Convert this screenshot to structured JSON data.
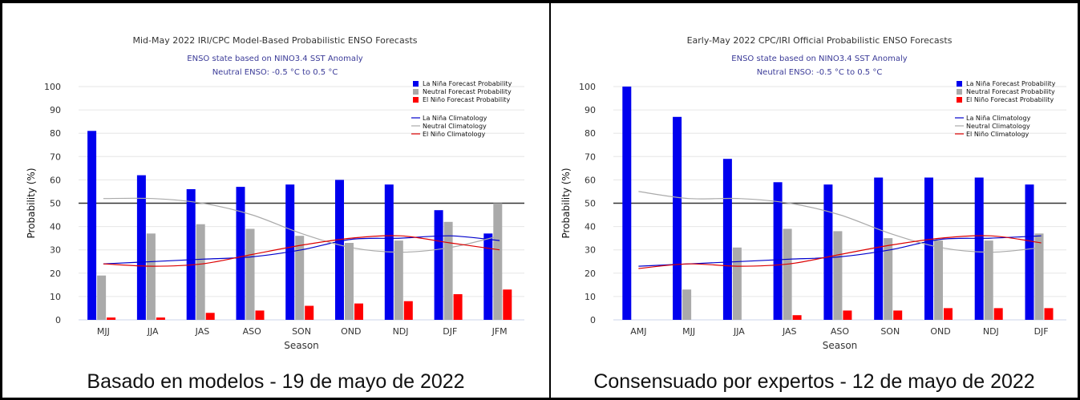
{
  "chart_data": [
    {
      "type": "bar",
      "title": "Mid-May 2022 IRI/CPC Model-Based Probabilistic ENSO Forecasts",
      "subtitle1": "ENSO state based on NINO3.4 SST Anomaly",
      "subtitle2": "Neutral ENSO: -0.5 °C to 0.5 °C",
      "xlabel": "Season",
      "ylabel": "Probability (%)",
      "ylim": [
        0,
        100
      ],
      "yticks": [
        0,
        10,
        20,
        30,
        40,
        50,
        60,
        70,
        80,
        90,
        100
      ],
      "reference_line": 50,
      "categories": [
        "MJJ",
        "JJA",
        "JAS",
        "ASO",
        "SON",
        "OND",
        "NDJ",
        "DJF",
        "JFM"
      ],
      "series": [
        {
          "name": "La Niña Forecast Probability",
          "color": "#0000ee",
          "values": [
            81,
            62,
            56,
            57,
            58,
            60,
            58,
            47,
            37
          ]
        },
        {
          "name": "Neutral Forecast Probability",
          "color": "#aaaaaa",
          "values": [
            19,
            37,
            41,
            39,
            36,
            33,
            34,
            42,
            50
          ]
        },
        {
          "name": "El Niño Forecast Probability",
          "color": "#ff0000",
          "values": [
            1,
            1,
            3,
            4,
            6,
            7,
            8,
            11,
            13
          ]
        }
      ],
      "climatology": [
        {
          "name": "La Niña Climatology",
          "color": "#0000cc",
          "values": [
            24,
            25,
            26,
            27,
            30,
            34.5,
            35,
            36,
            34
          ]
        },
        {
          "name": "Neutral Climatology",
          "color": "#aaaaaa",
          "values": [
            52,
            52,
            50,
            45,
            37,
            31,
            29,
            31,
            36
          ]
        },
        {
          "name": "El Niño Climatology",
          "color": "#dd0000",
          "values": [
            24,
            23,
            24,
            28,
            32,
            35,
            36,
            33,
            30
          ]
        }
      ],
      "legend_position": "top-right"
    },
    {
      "type": "bar",
      "title": "Early-May 2022 CPC/IRI Official Probabilistic ENSO Forecasts",
      "subtitle1": "ENSO state based on NINO3.4 SST Anomaly",
      "subtitle2": "Neutral ENSO: -0.5 °C to 0.5 °C",
      "xlabel": "Season",
      "ylabel": "Probability (%)",
      "ylim": [
        0,
        100
      ],
      "yticks": [
        0,
        10,
        20,
        30,
        40,
        50,
        60,
        70,
        80,
        90,
        100
      ],
      "reference_line": 50,
      "categories": [
        "AMJ",
        "MJJ",
        "JJA",
        "JAS",
        "ASO",
        "SON",
        "OND",
        "NDJ",
        "DJF"
      ],
      "series": [
        {
          "name": "La Niña Forecast Probability",
          "color": "#0000ee",
          "values": [
            100,
            87,
            69,
            59,
            58,
            61,
            61,
            61,
            58
          ]
        },
        {
          "name": "Neutral Forecast Probability",
          "color": "#aaaaaa",
          "values": [
            0,
            13,
            31,
            39,
            38,
            35,
            34,
            34,
            37
          ]
        },
        {
          "name": "El Niño Forecast Probability",
          "color": "#ff0000",
          "values": [
            0,
            0,
            0,
            2,
            4,
            4,
            5,
            5,
            5
          ]
        }
      ],
      "climatology": [
        {
          "name": "La Niña Climatology",
          "color": "#0000cc",
          "values": [
            23,
            24,
            25,
            26,
            27,
            30,
            34.5,
            35,
            36
          ]
        },
        {
          "name": "Neutral Climatology",
          "color": "#aaaaaa",
          "values": [
            55,
            52,
            52,
            50,
            45,
            37,
            31,
            29,
            31
          ]
        },
        {
          "name": "El Niño Climatology",
          "color": "#dd0000",
          "values": [
            22,
            24,
            23,
            24,
            28,
            32,
            35,
            36,
            33
          ]
        }
      ],
      "legend_position": "top-right"
    }
  ],
  "captions": {
    "left": "Basado en modelos - 19 de mayo de 2022",
    "right": "Consensuado por expertos - 12 de mayo de 2022"
  }
}
